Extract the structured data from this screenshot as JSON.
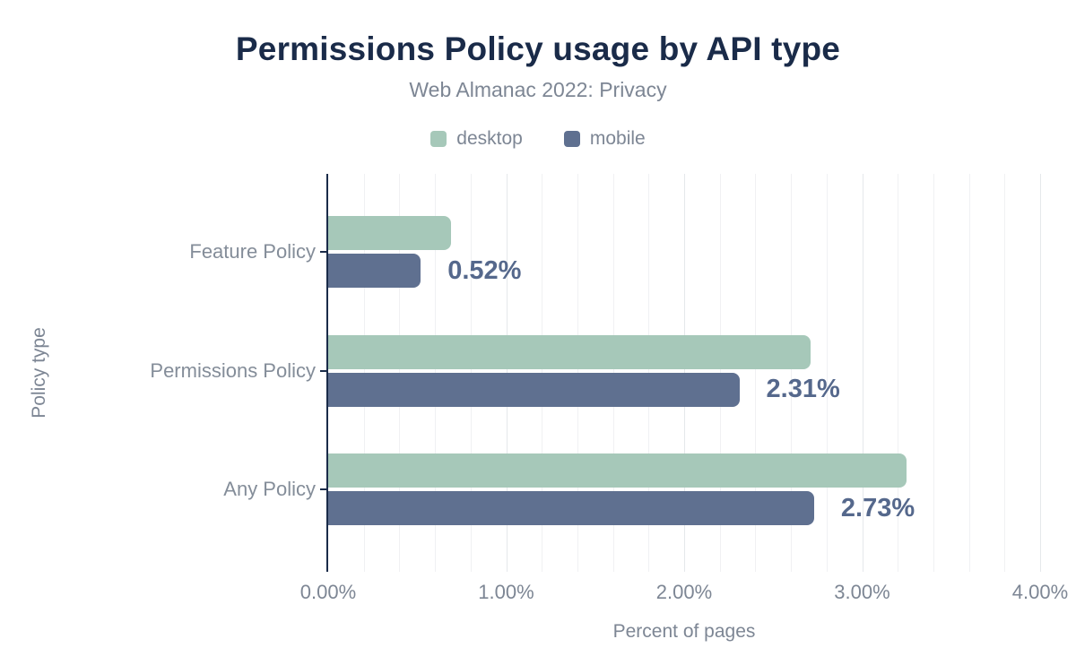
{
  "header": {
    "title": "Permissions Policy usage by API type",
    "subtitle": "Web Almanac 2022: Privacy"
  },
  "colors": {
    "title_text": "#1a2b49",
    "muted_text": "#7d8694",
    "axis_line": "#1a2b49",
    "desktop_green": "#a6c8b9",
    "mobile_slate": "#5f7090",
    "value_label_text": "#55688c",
    "gridline_minor": "#f0f1f3",
    "gridline_major": "#e5e8eb"
  },
  "chart_data": {
    "type": "bar",
    "orientation": "horizontal",
    "title": "Permissions Policy usage by API type",
    "subtitle": "Web Almanac 2022: Privacy",
    "categories": [
      "Feature Policy",
      "Permissions Policy",
      "Any Policy"
    ],
    "series": [
      {
        "name": "desktop",
        "color": "#a6c8b9",
        "values": [
          0.69,
          2.71,
          3.25
        ],
        "labels": [
          "",
          "",
          ""
        ]
      },
      {
        "name": "mobile",
        "color": "#5f7090",
        "values": [
          0.52,
          2.31,
          2.73
        ],
        "labels": [
          "0.52%",
          "2.31%",
          "2.73%"
        ]
      }
    ],
    "xlabel": "Percent of pages",
    "ylabel": "Policy type",
    "xlim": [
      0,
      4
    ],
    "x_ticks": [
      {
        "value": 0,
        "label": "0.00%"
      },
      {
        "value": 1,
        "label": "1.00%"
      },
      {
        "value": 2,
        "label": "2.00%"
      },
      {
        "value": 3,
        "label": "3.00%"
      },
      {
        "value": 4,
        "label": "4.00%"
      }
    ],
    "grid": true,
    "minor_grid_step": 0.2,
    "legend_position": "top"
  }
}
